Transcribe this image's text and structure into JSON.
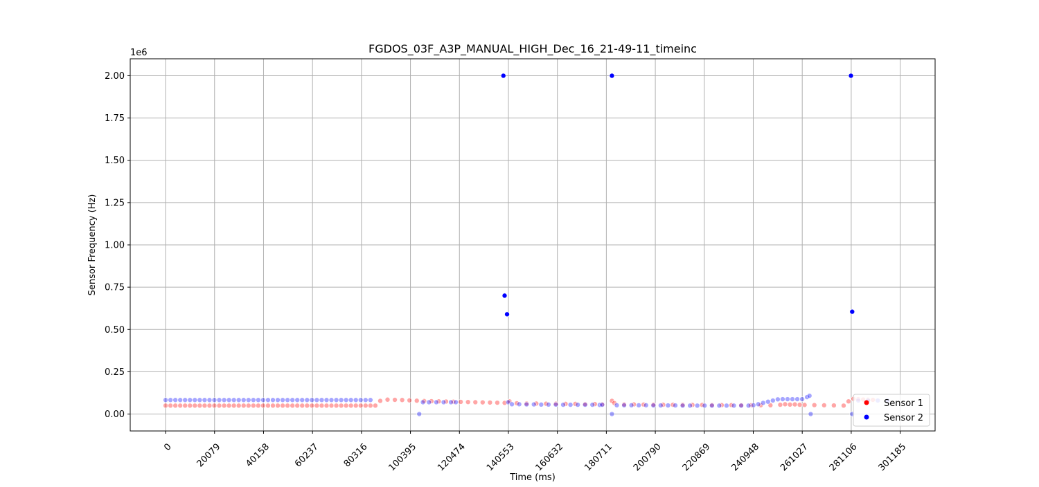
{
  "chart_data": {
    "type": "scatter",
    "title": "FGDOS_03F_A3P_MANUAL_HIGH_Dec_16_21-49-11_timeinc",
    "xlabel": "Time (ms)",
    "ylabel": "Sensor Frequency (Hz)",
    "y_offset_text": "1e6",
    "xlim": [
      -14500,
      315500
    ],
    "ylim": [
      -100000,
      2100000
    ],
    "xticks": [
      0,
      20079,
      40158,
      60237,
      80316,
      100395,
      120474,
      140553,
      160632,
      180711,
      200790,
      220869,
      240948,
      261027,
      281106,
      301185
    ],
    "yticks": [
      0,
      250000,
      500000,
      750000,
      1000000,
      1250000,
      1500000,
      1750000,
      2000000
    ],
    "ytick_labels": [
      "0.00",
      "0.25",
      "0.50",
      "0.75",
      "1.00",
      "1.25",
      "1.50",
      "1.75",
      "2.00"
    ],
    "grid": true,
    "legend_position": "lower right",
    "series": [
      {
        "name": "Sensor 1",
        "color": "#ff0000",
        "points": [
          [
            0,
            50000
          ],
          [
            2000,
            50000
          ],
          [
            4000,
            50000
          ],
          [
            6000,
            50000
          ],
          [
            8000,
            50000
          ],
          [
            10000,
            50000
          ],
          [
            12000,
            50000
          ],
          [
            14000,
            50000
          ],
          [
            16000,
            50000
          ],
          [
            18000,
            50000
          ],
          [
            20000,
            50000
          ],
          [
            22000,
            50000
          ],
          [
            24000,
            50000
          ],
          [
            26000,
            50000
          ],
          [
            28000,
            50000
          ],
          [
            30000,
            50000
          ],
          [
            32000,
            50000
          ],
          [
            34000,
            50000
          ],
          [
            36000,
            50000
          ],
          [
            38000,
            50000
          ],
          [
            40000,
            50000
          ],
          [
            42000,
            50000
          ],
          [
            44000,
            50000
          ],
          [
            46000,
            50000
          ],
          [
            48000,
            50000
          ],
          [
            50000,
            50000
          ],
          [
            52000,
            50000
          ],
          [
            54000,
            50000
          ],
          [
            56000,
            50000
          ],
          [
            58000,
            50000
          ],
          [
            60000,
            50000
          ],
          [
            62000,
            50000
          ],
          [
            64000,
            50000
          ],
          [
            66000,
            50000
          ],
          [
            68000,
            50000
          ],
          [
            70000,
            50000
          ],
          [
            72000,
            50000
          ],
          [
            74000,
            50000
          ],
          [
            76000,
            50000
          ],
          [
            78000,
            50000
          ],
          [
            80000,
            50000
          ],
          [
            82000,
            50000
          ],
          [
            84000,
            50000
          ],
          [
            86000,
            50000
          ],
          [
            88000,
            78000
          ],
          [
            91000,
            85000
          ],
          [
            94000,
            84000
          ],
          [
            97000,
            83000
          ],
          [
            100000,
            81000
          ],
          [
            103000,
            79000
          ],
          [
            106000,
            77000
          ],
          [
            109000,
            76000
          ],
          [
            112000,
            75000
          ],
          [
            115000,
            74000
          ],
          [
            118000,
            73000
          ],
          [
            121000,
            72000
          ],
          [
            124000,
            71000
          ],
          [
            127000,
            70000
          ],
          [
            130000,
            69000
          ],
          [
            133000,
            68000
          ],
          [
            136000,
            67000
          ],
          [
            139000,
            66000
          ],
          [
            141000,
            75000
          ],
          [
            144000,
            64000
          ],
          [
            148000,
            62000
          ],
          [
            152000,
            62000
          ],
          [
            156000,
            61000
          ],
          [
            160000,
            61000
          ],
          [
            164000,
            60000
          ],
          [
            168000,
            60000
          ],
          [
            172000,
            59000
          ],
          [
            176000,
            59000
          ],
          [
            179000,
            58000
          ],
          [
            183000,
            78000
          ],
          [
            184000,
            65000
          ],
          [
            188000,
            57000
          ],
          [
            192000,
            57000
          ],
          [
            196000,
            56000
          ],
          [
            200000,
            56000
          ],
          [
            204000,
            55000
          ],
          [
            208000,
            55000
          ],
          [
            212000,
            55000
          ],
          [
            216000,
            54000
          ],
          [
            220000,
            54000
          ],
          [
            224000,
            54000
          ],
          [
            228000,
            53000
          ],
          [
            232000,
            53000
          ],
          [
            236000,
            53000
          ],
          [
            240000,
            52000
          ],
          [
            244000,
            52000
          ],
          [
            248000,
            52000
          ],
          [
            252000,
            55000
          ],
          [
            254000,
            58000
          ],
          [
            256000,
            56000
          ],
          [
            258000,
            57000
          ],
          [
            260000,
            55000
          ],
          [
            262000,
            54000
          ],
          [
            266000,
            53000
          ],
          [
            270000,
            52000
          ],
          [
            274000,
            51000
          ],
          [
            278000,
            50000
          ],
          [
            280000,
            75000
          ],
          [
            282000,
            90000
          ],
          [
            284000,
            88000
          ],
          [
            286000,
            86000
          ],
          [
            288000,
            85000
          ],
          [
            290000,
            84000
          ]
        ]
      },
      {
        "name": "Sensor 2",
        "color": "#0000ff",
        "points": [
          [
            0,
            83000
          ],
          [
            2000,
            83000
          ],
          [
            4000,
            83000
          ],
          [
            6000,
            83000
          ],
          [
            8000,
            83000
          ],
          [
            10000,
            83000
          ],
          [
            12000,
            83000
          ],
          [
            14000,
            83000
          ],
          [
            16000,
            83000
          ],
          [
            18000,
            83000
          ],
          [
            20000,
            83000
          ],
          [
            22000,
            83000
          ],
          [
            24000,
            83000
          ],
          [
            26000,
            83000
          ],
          [
            28000,
            83000
          ],
          [
            30000,
            83000
          ],
          [
            32000,
            83000
          ],
          [
            34000,
            83000
          ],
          [
            36000,
            83000
          ],
          [
            38000,
            83000
          ],
          [
            40000,
            83000
          ],
          [
            42000,
            83000
          ],
          [
            44000,
            83000
          ],
          [
            46000,
            83000
          ],
          [
            48000,
            83000
          ],
          [
            50000,
            83000
          ],
          [
            52000,
            83000
          ],
          [
            54000,
            83000
          ],
          [
            56000,
            83000
          ],
          [
            58000,
            83000
          ],
          [
            60000,
            83000
          ],
          [
            62000,
            83000
          ],
          [
            64000,
            83000
          ],
          [
            66000,
            83000
          ],
          [
            68000,
            83000
          ],
          [
            70000,
            83000
          ],
          [
            72000,
            83000
          ],
          [
            74000,
            83000
          ],
          [
            76000,
            83000
          ],
          [
            78000,
            83000
          ],
          [
            80000,
            83000
          ],
          [
            82000,
            83000
          ],
          [
            84000,
            83000
          ],
          [
            104000,
            0
          ],
          [
            105500,
            70000
          ],
          [
            108000,
            70000
          ],
          [
            111000,
            70000
          ],
          [
            114000,
            70000
          ],
          [
            117000,
            70000
          ],
          [
            119000,
            70000
          ],
          [
            138500,
            2000000
          ],
          [
            139000,
            700000
          ],
          [
            140000,
            590000
          ],
          [
            140500,
            70000
          ],
          [
            142000,
            58000
          ],
          [
            145000,
            58000
          ],
          [
            148000,
            57000
          ],
          [
            151000,
            57000
          ],
          [
            154000,
            56000
          ],
          [
            157000,
            56000
          ],
          [
            160000,
            56000
          ],
          [
            163000,
            55000
          ],
          [
            166000,
            55000
          ],
          [
            169000,
            55000
          ],
          [
            172000,
            55000
          ],
          [
            175000,
            55000
          ],
          [
            178000,
            54000
          ],
          [
            179000,
            55000
          ],
          [
            183000,
            2000000
          ],
          [
            183000,
            0
          ],
          [
            185000,
            52000
          ],
          [
            188000,
            52000
          ],
          [
            191000,
            52000
          ],
          [
            194000,
            52000
          ],
          [
            197000,
            52000
          ],
          [
            200000,
            51000
          ],
          [
            203000,
            51000
          ],
          [
            206000,
            51000
          ],
          [
            209000,
            51000
          ],
          [
            212000,
            50000
          ],
          [
            215000,
            50000
          ],
          [
            218000,
            50000
          ],
          [
            221000,
            50000
          ],
          [
            224000,
            50000
          ],
          [
            227000,
            50000
          ],
          [
            230000,
            50000
          ],
          [
            233000,
            50000
          ],
          [
            236000,
            50000
          ],
          [
            239000,
            50000
          ],
          [
            241000,
            52000
          ],
          [
            243000,
            58000
          ],
          [
            245000,
            66000
          ],
          [
            247000,
            73000
          ],
          [
            249000,
            80000
          ],
          [
            251000,
            87000
          ],
          [
            253000,
            88000
          ],
          [
            255000,
            88000
          ],
          [
            257000,
            88000
          ],
          [
            259000,
            88000
          ],
          [
            261000,
            88000
          ],
          [
            263000,
            100000
          ],
          [
            264000,
            108000
          ],
          [
            264500,
            0
          ],
          [
            281000,
            2000000
          ],
          [
            281500,
            605000
          ],
          [
            281500,
            0
          ],
          [
            284000,
            80000
          ],
          [
            288000,
            80000
          ],
          [
            292000,
            80000
          ],
          [
            296000,
            80000
          ]
        ]
      }
    ]
  }
}
